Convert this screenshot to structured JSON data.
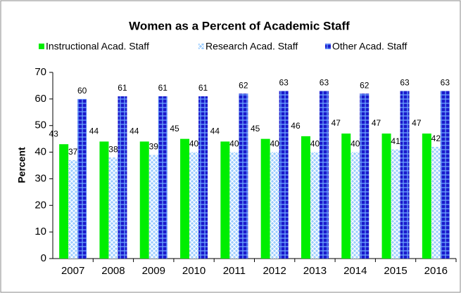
{
  "chart_data": {
    "type": "bar",
    "title": "Women as a Percent of Academic Staff",
    "y_label": "Percent",
    "categories": [
      "2007",
      "2008",
      "2009",
      "2010",
      "2011",
      "2012",
      "2013",
      "2014",
      "2015",
      "2016"
    ],
    "series": [
      {
        "name": "Instructional Acad. Staff",
        "color": "#00ee00",
        "values": [
          43,
          44,
          44,
          45,
          44,
          45,
          46,
          47,
          47,
          47
        ]
      },
      {
        "name": "Research Acad. Staff",
        "color": "#99ccff",
        "values": [
          37,
          38,
          39,
          40,
          40,
          40,
          40,
          40,
          41,
          42
        ]
      },
      {
        "name": "Other Acad. Staff",
        "color": "#1a1acc",
        "values": [
          60,
          61,
          61,
          61,
          62,
          63,
          63,
          62,
          63,
          63
        ]
      }
    ],
    "ylim": [
      0,
      70
    ],
    "yticks": [
      0,
      10,
      20,
      30,
      40,
      50,
      60,
      70
    ],
    "legend": "top"
  }
}
